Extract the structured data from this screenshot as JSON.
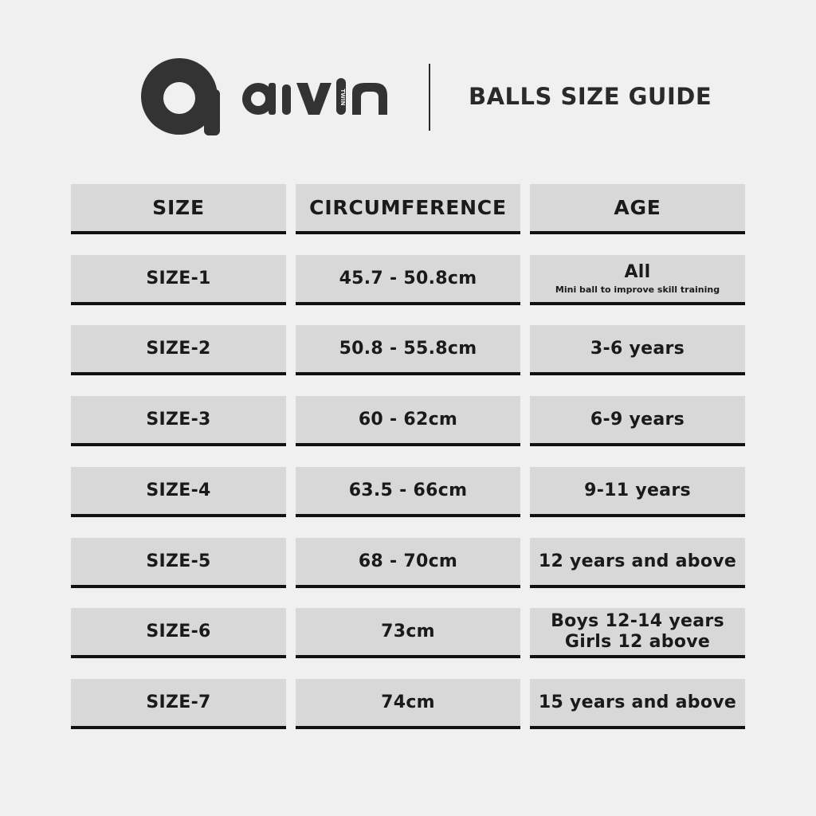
{
  "header": {
    "brand": "aivin",
    "brand_sub": "twin",
    "title": "BALLS SIZE GUIDE"
  },
  "columns": [
    "SIZE",
    "CIRCUMFERENCE",
    "AGE"
  ],
  "rows": [
    {
      "size": "SIZE-1",
      "circumference": "45.7 - 50.8cm",
      "age": "All",
      "age_note": "Mini ball to improve skill training"
    },
    {
      "size": "SIZE-2",
      "circumference": "50.8 - 55.8cm",
      "age": "3-6 years"
    },
    {
      "size": "SIZE-3",
      "circumference": "60 - 62cm",
      "age": "6-9 years"
    },
    {
      "size": "SIZE-4",
      "circumference": "63.5 - 66cm",
      "age": "9-11 years"
    },
    {
      "size": "SIZE-5",
      "circumference": "68 - 70cm",
      "age": "12 years and above"
    },
    {
      "size": "SIZE-6",
      "circumference": "73cm",
      "age": "Boys 12-14 years",
      "age_line2": "Girls 12 above"
    },
    {
      "size": "SIZE-7",
      "circumference": "74cm",
      "age": "15 years and above"
    }
  ],
  "colors": {
    "background": "#f0f0f0",
    "cell": "#d8d8d8",
    "underline": "#111111",
    "text": "#1a1a1a"
  }
}
